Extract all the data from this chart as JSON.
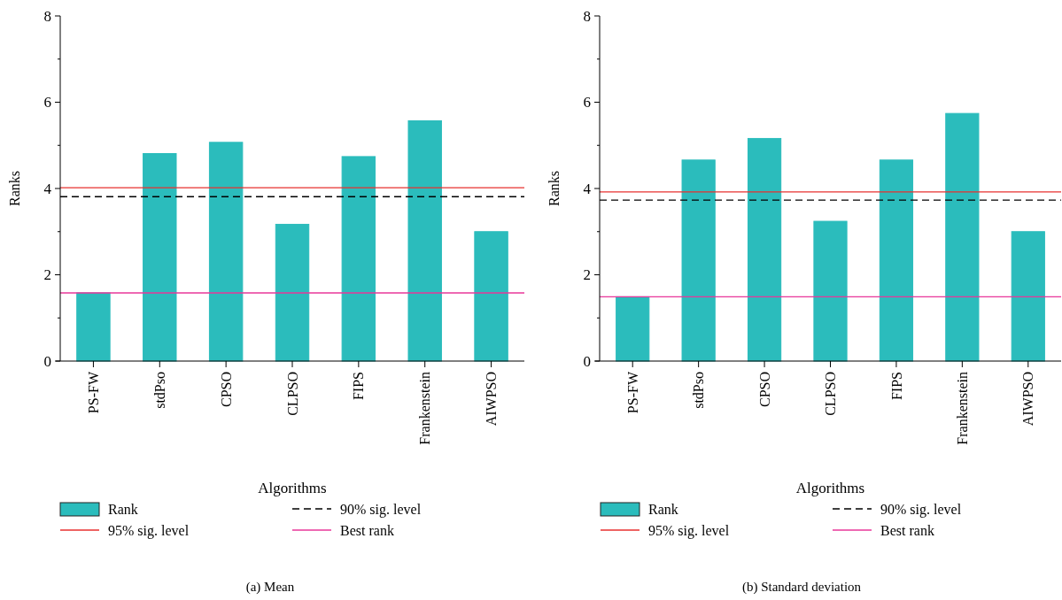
{
  "chart_data": [
    {
      "type": "bar",
      "ylabel": "Ranks",
      "xlabel": "Algorithms",
      "categories": [
        "PS-FW",
        "stdPso",
        "CPSO",
        "CLPSO",
        "FIPS",
        "Frankenstein",
        "AIWPSO"
      ],
      "series": [
        {
          "name": "Rank",
          "color": "#2bbcbc",
          "values": [
            1.58,
            4.81,
            5.07,
            3.17,
            4.74,
            5.57,
            3.0
          ]
        }
      ],
      "ylim": [
        0,
        8
      ],
      "yticks": [
        0,
        {
          "value": 1,
          "label": null
        },
        2,
        {
          "value": 3,
          "label": null
        },
        4,
        {
          "value": 5,
          "label": null
        },
        6,
        {
          "value": 7,
          "label": null
        },
        8
      ],
      "ref_lines": [
        {
          "axis": "y",
          "value": 3.81,
          "label": "90% sig. level",
          "color": "#000000",
          "line_style": "dashed"
        },
        {
          "axis": "y",
          "value": 4.02,
          "label": "95% sig. level",
          "color": "#e8312f",
          "line_style": "solid"
        },
        {
          "axis": "y",
          "value": 1.58,
          "label": "Best rank",
          "color": "#e8379a",
          "line_style": "solid"
        }
      ],
      "legend": "bottom",
      "grid": false,
      "annotations": [
        "(a)  Mean"
      ]
    },
    {
      "type": "bar",
      "ylabel": "Ranks",
      "xlabel": "Algorithms",
      "categories": [
        "PS-FW",
        "stdPso",
        "CPSO",
        "CLPSO",
        "FIPS",
        "Frankenstein",
        "AIWPSO"
      ],
      "series": [
        {
          "name": "Rank",
          "color": "#2bbcbc",
          "values": [
            1.49,
            4.66,
            5.16,
            3.24,
            4.66,
            5.74,
            3.0
          ]
        }
      ],
      "ylim": [
        0,
        8
      ],
      "yticks": [
        0,
        {
          "value": 1,
          "label": null
        },
        2,
        {
          "value": 3,
          "label": null
        },
        4,
        {
          "value": 5,
          "label": null
        },
        6,
        {
          "value": 7,
          "label": null
        },
        8
      ],
      "ref_lines": [
        {
          "axis": "y",
          "value": 3.73,
          "label": "90% sig. level",
          "color": "#000000",
          "line_style": "dashed"
        },
        {
          "axis": "y",
          "value": 3.92,
          "label": "95% sig. level",
          "color": "#e8312f",
          "line_style": "solid"
        },
        {
          "axis": "y",
          "value": 1.49,
          "label": "Best rank",
          "color": "#e8379a",
          "line_style": "solid"
        }
      ],
      "legend": "bottom",
      "grid": false,
      "annotations": [
        "(b)  Standard deviation"
      ]
    }
  ]
}
